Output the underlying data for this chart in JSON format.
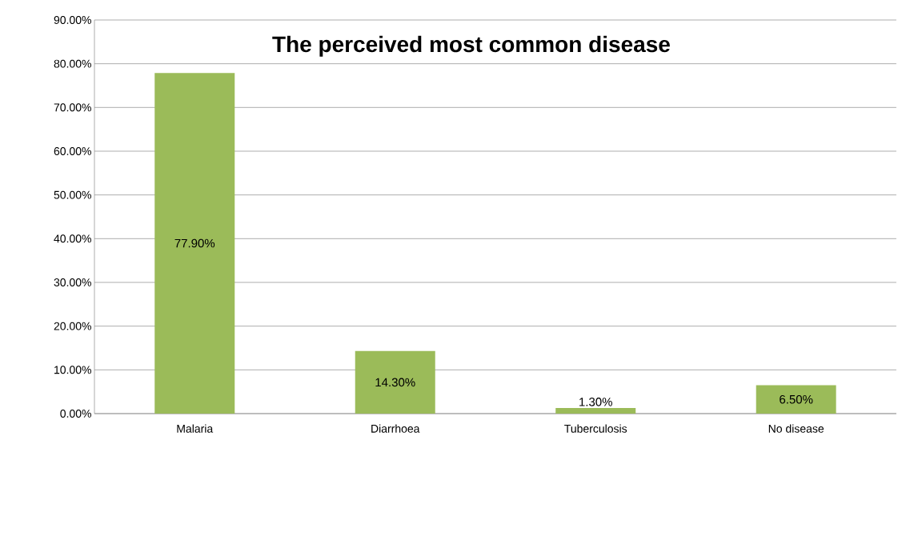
{
  "chart_data": {
    "type": "bar",
    "title": "The perceived most common disease",
    "categories": [
      "Malaria",
      "Diarrhoea",
      "Tuberculosis",
      "No disease"
    ],
    "values": [
      77.9,
      14.3,
      1.3,
      6.5
    ],
    "value_labels": [
      "77.90%",
      "14.30%",
      "1.30%",
      "6.50%"
    ],
    "color": "#9bbb59",
    "ylim": [
      0,
      90
    ],
    "yticks": [
      {
        "value": 0,
        "label": "0.00%"
      },
      {
        "value": 10,
        "label": "10.00%"
      },
      {
        "value": 20,
        "label": "20.00%"
      },
      {
        "value": 30,
        "label": "30.00%"
      },
      {
        "value": 40,
        "label": "40.00%"
      },
      {
        "value": 50,
        "label": "50.00%"
      },
      {
        "value": 60,
        "label": "60.00%"
      },
      {
        "value": 70,
        "label": "70.00%"
      },
      {
        "value": 80,
        "label": "80.00%"
      },
      {
        "value": 90,
        "label": "90.00%"
      }
    ],
    "grid": "y"
  }
}
